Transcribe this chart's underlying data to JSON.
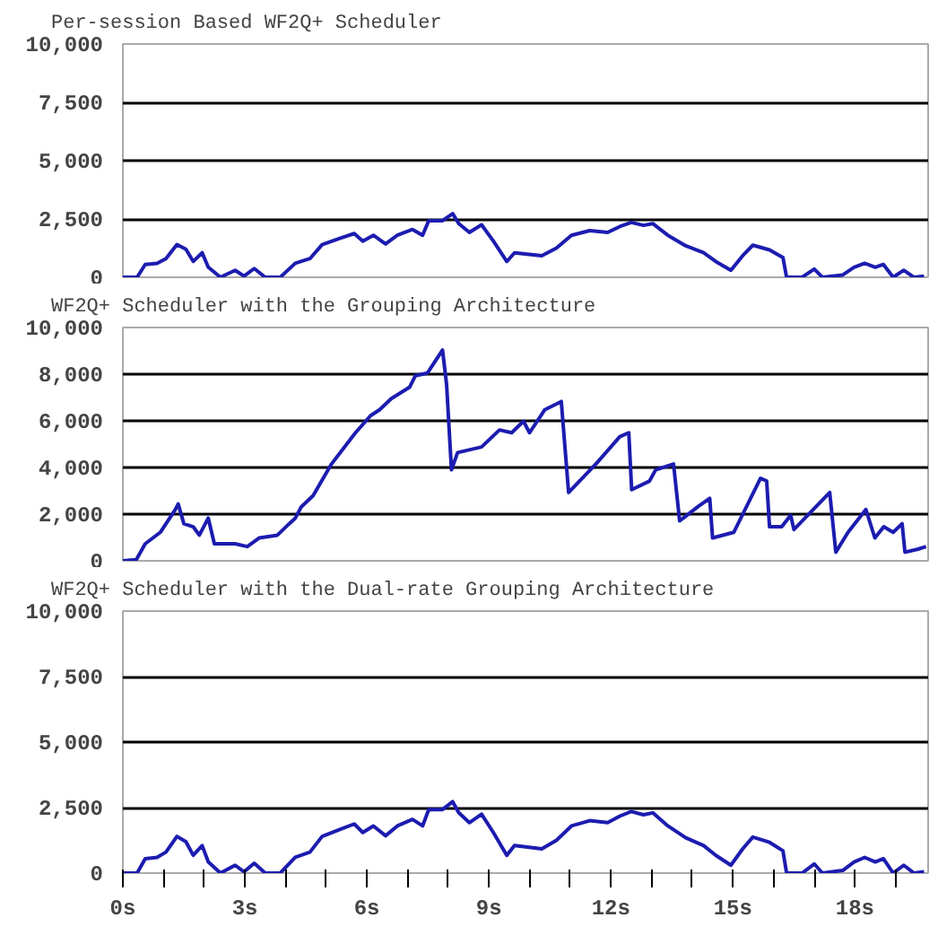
{
  "chart_data": [
    {
      "type": "line",
      "title": "Per-session Based WF2Q+ Scheduler",
      "xlim": [
        0,
        19.8
      ],
      "ylim": [
        0,
        10000
      ],
      "yticks": [
        0,
        {
          "value": 2500,
          "label": "2,500"
        },
        {
          "value": 5000,
          "label": "5,000"
        },
        {
          "value": 7500,
          "label": "7,500"
        },
        {
          "value": 10000,
          "label": "10,000"
        }
      ],
      "grid": "y",
      "tick_labels": "y",
      "series": [
        {
          "color": "#1c1cb0",
          "x": [
            0,
            0.35,
            0.55,
            0.84,
            1.06,
            1.33,
            1.55,
            1.73,
            1.95,
            2.1,
            2.4,
            2.76,
            2.98,
            3.23,
            3.5,
            3.87,
            4.24,
            4.6,
            4.9,
            5.35,
            5.69,
            5.9,
            6.16,
            6.46,
            6.75,
            7.12,
            7.37,
            7.52,
            7.86,
            8.11,
            8.26,
            8.52,
            8.82,
            9.11,
            9.44,
            9.63,
            10.3,
            10.66,
            11.03,
            11.48,
            11.92,
            12.22,
            12.5,
            12.8,
            13.03,
            13.4,
            13.84,
            14.28,
            14.58,
            14.95,
            15.24,
            15.49,
            15.9,
            16.23,
            16.32,
            16.7,
            17.0,
            17.2,
            17.7,
            17.98,
            18.24,
            18.5,
            18.7,
            18.94,
            19.2,
            19.45,
            19.7
          ],
          "values": [
            0,
            0,
            550,
            600,
            800,
            1400,
            1200,
            680,
            1050,
            430,
            0,
            300,
            50,
            375,
            0,
            0,
            600,
            800,
            1400,
            1675,
            1875,
            1550,
            1800,
            1425,
            1800,
            2050,
            1800,
            2425,
            2425,
            2725,
            2300,
            1925,
            2250,
            1550,
            675,
            1050,
            925,
            1250,
            1800,
            2000,
            1925,
            2175,
            2350,
            2225,
            2300,
            1800,
            1350,
            1050,
            675,
            300,
            925,
            1375,
            1175,
            850,
            0,
            0,
            350,
            0,
            100,
            425,
            600,
            425,
            550,
            0,
            300,
            0,
            50
          ]
        }
      ]
    },
    {
      "type": "line",
      "title": "WF2Q+ Scheduler with the Grouping Architecture",
      "xlim": [
        0,
        19.8
      ],
      "ylim": [
        0,
        10000
      ],
      "yticks": [
        0,
        {
          "value": 2000,
          "label": "2,000"
        },
        {
          "value": 4000,
          "label": "4,000"
        },
        {
          "value": 6000,
          "label": "6,000"
        },
        {
          "value": 8000,
          "label": "8,000"
        },
        {
          "value": 10000,
          "label": "10,000"
        }
      ],
      "grid": "y",
      "tick_labels": "y",
      "series": [
        {
          "color": "#1c1cb0",
          "x": [
            0,
            0.33,
            0.55,
            0.92,
            1.29,
            1.36,
            1.5,
            1.73,
            1.88,
            2.1,
            2.25,
            2.76,
            3.06,
            3.35,
            3.8,
            4.09,
            4.24,
            4.39,
            4.68,
            5.13,
            5.72,
            6.09,
            6.31,
            6.6,
            7.05,
            7.19,
            7.49,
            7.86,
            7.96,
            8.08,
            8.23,
            8.82,
            9.26,
            9.56,
            9.85,
            10.0,
            10.37,
            10.78,
            10.96,
            11.63,
            12.22,
            12.44,
            12.51,
            12.95,
            13.1,
            13.54,
            13.69,
            14.14,
            14.43,
            14.5,
            15.02,
            15.68,
            15.83,
            15.9,
            16.2,
            16.42,
            16.5,
            17.31,
            17.38,
            17.53,
            17.83,
            18.27,
            18.49,
            18.71,
            18.94,
            19.16,
            19.23,
            19.53,
            19.75
          ],
          "values": [
            0,
            50,
            730,
            1220,
            2200,
            2440,
            1590,
            1460,
            1100,
            1830,
            730,
            730,
            610,
            980,
            1100,
            1590,
            1830,
            2320,
            2800,
            4150,
            5490,
            6220,
            6470,
            6950,
            7440,
            7930,
            8050,
            9030,
            7560,
            3900,
            4640,
            4880,
            5610,
            5490,
            5980,
            5490,
            6470,
            6830,
            2930,
            4150,
            5320,
            5490,
            3050,
            3420,
            3900,
            4150,
            1710,
            2320,
            2680,
            980,
            1220,
            3540,
            3420,
            1460,
            1460,
            1950,
            1340,
            2800,
            2930,
            370,
            1220,
            2200,
            980,
            1460,
            1220,
            1590,
            370,
            490,
            610
          ]
        }
      ]
    },
    {
      "type": "line",
      "title": "WF2Q+ Scheduler with the Dual-rate Grouping Architecture",
      "xlim": [
        0,
        19.8
      ],
      "ylim": [
        0,
        10000
      ],
      "yticks": [
        0,
        {
          "value": 2500,
          "label": "2,500"
        },
        {
          "value": 5000,
          "label": "5,000"
        },
        {
          "value": 7500,
          "label": "7,500"
        },
        {
          "value": 10000,
          "label": "10,000"
        }
      ],
      "grid": "y",
      "xticks": [
        {
          "value": 0,
          "label": "0s"
        },
        {
          "value": 1,
          "label": null
        },
        {
          "value": 2,
          "label": null
        },
        {
          "value": 3,
          "label": "3s"
        },
        {
          "value": 4,
          "label": null
        },
        {
          "value": 5,
          "label": null
        },
        {
          "value": 6,
          "label": "6s"
        },
        {
          "value": 7,
          "label": null
        },
        {
          "value": 8,
          "label": null
        },
        {
          "value": 9,
          "label": "9s"
        },
        {
          "value": 10,
          "label": null
        },
        {
          "value": 11,
          "label": null
        },
        {
          "value": 12,
          "label": "12s"
        },
        {
          "value": 13,
          "label": null
        },
        {
          "value": 14,
          "label": null
        },
        {
          "value": 15,
          "label": "15s"
        },
        {
          "value": 16,
          "label": null
        },
        {
          "value": 17,
          "label": null
        },
        {
          "value": 18,
          "label": "18s"
        },
        {
          "value": 19,
          "label": null
        }
      ],
      "series": [
        {
          "color": "#1c1cb0",
          "x": [
            0,
            0.35,
            0.55,
            0.84,
            1.06,
            1.33,
            1.55,
            1.73,
            1.95,
            2.1,
            2.4,
            2.76,
            2.98,
            3.23,
            3.5,
            3.87,
            4.24,
            4.6,
            4.9,
            5.35,
            5.69,
            5.9,
            6.16,
            6.46,
            6.75,
            7.12,
            7.37,
            7.52,
            7.86,
            8.11,
            8.26,
            8.52,
            8.82,
            9.11,
            9.44,
            9.63,
            10.3,
            10.66,
            11.03,
            11.48,
            11.92,
            12.22,
            12.5,
            12.8,
            13.03,
            13.4,
            13.84,
            14.28,
            14.58,
            14.95,
            15.24,
            15.49,
            15.9,
            16.23,
            16.32,
            16.7,
            17.0,
            17.2,
            17.7,
            17.98,
            18.24,
            18.5,
            18.7,
            18.94,
            19.2,
            19.45,
            19.7
          ],
          "values": [
            0,
            0,
            550,
            600,
            800,
            1400,
            1200,
            680,
            1050,
            430,
            0,
            300,
            50,
            375,
            0,
            0,
            600,
            800,
            1400,
            1675,
            1875,
            1550,
            1800,
            1425,
            1800,
            2050,
            1800,
            2425,
            2425,
            2725,
            2300,
            1925,
            2250,
            1550,
            675,
            1050,
            925,
            1250,
            1800,
            2000,
            1925,
            2175,
            2350,
            2225,
            2300,
            1800,
            1350,
            1050,
            675,
            300,
            925,
            1375,
            1175,
            850,
            0,
            0,
            350,
            0,
            100,
            425,
            600,
            425,
            550,
            0,
            300,
            0,
            50
          ]
        }
      ]
    }
  ]
}
